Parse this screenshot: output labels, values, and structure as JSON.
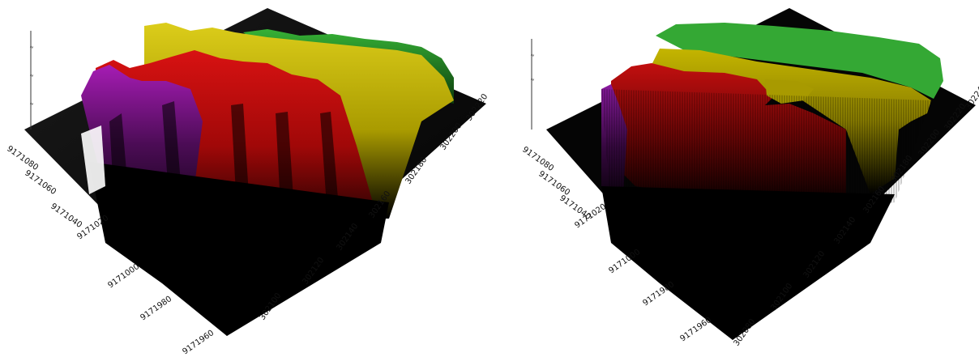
{
  "chart_data": [
    {
      "type": "surface3d",
      "y_ticks": [
        "9171080",
        "9171060",
        "9171040",
        "9171020",
        "9171000",
        "9171980",
        "9171960"
      ],
      "x_ticks": [
        "302100",
        "302120",
        "302140",
        "302160",
        "302180",
        "302200",
        "302220"
      ],
      "legend": [],
      "zones": [
        {
          "name": "",
          "color": "#bfb100"
        },
        {
          "name": "",
          "color": "#d01010"
        },
        {
          "name": "",
          "color": "#9a1aa8"
        },
        {
          "name": "",
          "color": "#34a834"
        }
      ]
    },
    {
      "type": "surface3d",
      "y_ticks": [
        "9171080",
        "9171060",
        "9171040",
        "9171020",
        "9171000",
        "9171980",
        "9171960"
      ],
      "x_ticks": [
        "302080",
        "302100",
        "302120",
        "302140",
        "302160",
        "302180",
        "302200",
        "302220",
        "302240"
      ],
      "legend": [],
      "zones": [
        {
          "name": "",
          "color": "#bfb100"
        },
        {
          "name": "",
          "color": "#d01010"
        },
        {
          "name": "",
          "color": "#9a1aa8"
        },
        {
          "name": "",
          "color": "#34a834"
        }
      ]
    }
  ]
}
